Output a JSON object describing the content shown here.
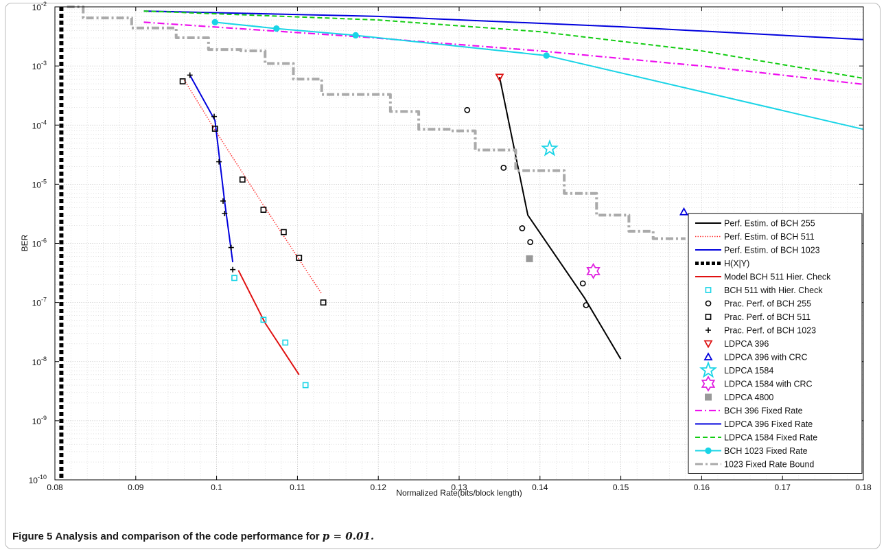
{
  "caption": {
    "label": "Figure 5",
    "text": "Analysis and comparison of the code performance for",
    "math": "p = 0.01."
  },
  "chart_data": {
    "type": "line",
    "xlabel": "Normalized Rate(bits/block length)",
    "ylabel": "BER",
    "xlim": [
      0.08,
      0.18
    ],
    "ylim": [
      1e-10,
      0.01
    ],
    "yscale": "log",
    "grid": true,
    "legend_position": "lower-right",
    "x_ticks": [
      "0.08",
      "0.09",
      "0.1",
      "0.11",
      "0.12",
      "0.13",
      "0.14",
      "0.15",
      "0.16",
      "0.17",
      "0.18"
    ],
    "y_ticks": [
      {
        "base": "10",
        "exp": "-10"
      },
      {
        "base": "10",
        "exp": "-9"
      },
      {
        "base": "10",
        "exp": "-8"
      },
      {
        "base": "10",
        "exp": "-7"
      },
      {
        "base": "10",
        "exp": "-6"
      },
      {
        "base": "10",
        "exp": "-5"
      },
      {
        "base": "10",
        "exp": "-4"
      },
      {
        "base": "10",
        "exp": "-3"
      },
      {
        "base": "10",
        "exp": "-2"
      }
    ],
    "series": [
      {
        "name": "Perf. Estim. of BCH 255",
        "color": "#000000",
        "line": "solid",
        "marker": "none",
        "x": [
          0.135,
          0.1385,
          0.1455,
          0.15
        ],
        "y": [
          0.00065,
          3e-06,
          1.2e-07,
          1.1e-08
        ]
      },
      {
        "name": "Perf. Estim. of BCH 511",
        "color": "#ff3b3b",
        "line": "dotted",
        "marker": "none",
        "x": [
          0.096,
          0.1,
          0.106,
          0.113
        ],
        "y": [
          0.00058,
          7.5e-05,
          4e-06,
          1.4e-07
        ]
      },
      {
        "name": "Perf. Estim. of BCH 1023",
        "color": "#0000dd",
        "line": "solid",
        "marker": "none",
        "x": [
          0.0967,
          0.0998,
          0.101,
          0.102
        ],
        "y": [
          0.0007,
          0.00012,
          5e-06,
          4.8e-07
        ]
      },
      {
        "name": "H(X|Y)",
        "color": "#000000",
        "line": "thickdash",
        "marker": "none",
        "x": [
          0.0808,
          0.0808
        ],
        "y": [
          0.01,
          1e-10
        ]
      },
      {
        "name": "Model BCH 511 Hier. Check",
        "color": "#e01010",
        "line": "solid",
        "marker": "none",
        "x": [
          0.1027,
          0.106,
          0.1102
        ],
        "y": [
          3.5e-07,
          4.5e-08,
          6e-09
        ]
      },
      {
        "name": "BCH 511 with Hier. Check",
        "color": "#19d4e6",
        "line": "none",
        "marker": "square",
        "x": [
          0.1022,
          0.1058,
          0.1085,
          0.111
        ],
        "y": [
          2.6e-07,
          5.1e-08,
          2.1e-08,
          4e-09
        ]
      },
      {
        "name": "Prac. Perf. of BCH 255",
        "color": "#000000",
        "line": "none",
        "marker": "circle",
        "x": [
          0.131,
          0.1355,
          0.1378,
          0.1388,
          0.1453,
          0.1457
        ],
        "y": [
          0.00018,
          1.9e-05,
          1.8e-06,
          1.05e-06,
          2.1e-07,
          9e-08
        ]
      },
      {
        "name": "Prac. Perf. of BCH 511",
        "color": "#000000",
        "line": "none",
        "marker": "square",
        "x": [
          0.0958,
          0.0998,
          0.1032,
          0.1058,
          0.1083,
          0.1102,
          0.1132
        ],
        "y": [
          0.00055,
          8.7e-05,
          1.2e-05,
          3.7e-06,
          1.55e-06,
          5.7e-07,
          1e-07
        ]
      },
      {
        "name": "Prac. Perf. of BCH 1023",
        "color": "#000000",
        "line": "none",
        "marker": "plus",
        "x": [
          0.0967,
          0.0997,
          0.1003,
          0.1008,
          0.101,
          0.1018,
          0.102
        ],
        "y": [
          0.0007,
          0.00014,
          2.4e-05,
          5.2e-06,
          3.2e-06,
          8.5e-07,
          3.6e-07
        ]
      },
      {
        "name": "LDPCA 396",
        "color": "#dd1111",
        "line": "none",
        "marker": "tri-down",
        "x": [
          0.135
        ],
        "y": [
          0.00065
        ]
      },
      {
        "name": "LDPCA 396 with CRC",
        "color": "#0000dd",
        "line": "none",
        "marker": "tri-up",
        "x": [
          0.1578
        ],
        "y": [
          3.4e-06
        ]
      },
      {
        "name": "LDPCA 1584",
        "color": "#19d4e6",
        "line": "none",
        "marker": "star",
        "x": [
          0.1412
        ],
        "y": [
          4e-05
        ]
      },
      {
        "name": "LDPCA 1584 with CRC",
        "color": "#e020e0",
        "line": "none",
        "marker": "hexagram",
        "x": [
          0.1466
        ],
        "y": [
          3.4e-07
        ]
      },
      {
        "name": "LDPCA 4800",
        "color": "#999999",
        "line": "none",
        "marker": "filled-square",
        "x": [
          0.1387
        ],
        "y": [
          5.5e-07
        ]
      },
      {
        "name": "BCH 396 Fixed Rate",
        "color": "#ee10ee",
        "line": "dashdot",
        "marker": "none",
        "x": [
          0.091,
          0.118,
          0.14,
          0.16,
          0.18
        ],
        "y": [
          0.0055,
          0.0031,
          0.0018,
          0.001,
          0.00049
        ]
      },
      {
        "name": "LDPCA 396 Fixed Rate",
        "color": "#0000dd",
        "line": "solid",
        "marker": "none",
        "x": [
          0.091,
          0.12,
          0.15,
          0.18
        ],
        "y": [
          0.0085,
          0.0069,
          0.0046,
          0.0028
        ]
      },
      {
        "name": "LDPCA 1584 Fixed Rate",
        "color": "#11cc11",
        "line": "dashed",
        "marker": "none",
        "x": [
          0.091,
          0.12,
          0.14,
          0.16,
          0.18
        ],
        "y": [
          0.0085,
          0.006,
          0.0038,
          0.0018,
          0.00062
        ]
      },
      {
        "name": "BCH 1023 Fixed Rate",
        "color": "#19d4e6",
        "line": "solid",
        "marker": "filled-circle",
        "x": [
          0.0998,
          0.1074,
          0.1172,
          0.1408,
          0.18
        ],
        "y": [
          0.0055,
          0.0043,
          0.0033,
          0.0015,
          8.5e-05
        ],
        "marker_count": 4
      },
      {
        "name": "1023 Fixed Rate Bound",
        "color": "#aaaaaa",
        "line": "dashdot-thick",
        "marker": "none",
        "x": [
          0.0815,
          0.0835,
          0.0835,
          0.0895,
          0.0895,
          0.095,
          0.095,
          0.099,
          0.099,
          0.103,
          0.103,
          0.106,
          0.106,
          0.1095,
          0.1095,
          0.113,
          0.113,
          0.1175,
          0.1175,
          0.1215,
          0.1215,
          0.125,
          0.125,
          0.129,
          0.129,
          0.132,
          0.132,
          0.135,
          0.135,
          0.137,
          0.137,
          0.14,
          0.14,
          0.143,
          0.143,
          0.147,
          0.147,
          0.151,
          0.151,
          0.154,
          0.154,
          0.158
        ],
        "y": [
          0.01,
          0.01,
          0.0065,
          0.0065,
          0.0044,
          0.0044,
          0.003,
          0.003,
          0.0019,
          0.0019,
          0.0018,
          0.0018,
          0.0011,
          0.0011,
          0.0006,
          0.0006,
          0.00033,
          0.00033,
          0.00033,
          0.00033,
          0.00017,
          0.00017,
          8.5e-05,
          8.5e-05,
          8e-05,
          8e-05,
          3.8e-05,
          3.8e-05,
          3.8e-05,
          3.8e-05,
          1.7e-05,
          1.7e-05,
          1.7e-05,
          1.7e-05,
          7e-06,
          7e-06,
          3e-06,
          3e-06,
          1.6e-06,
          1.6e-06,
          1.2e-06,
          1.2e-06
        ]
      }
    ]
  }
}
